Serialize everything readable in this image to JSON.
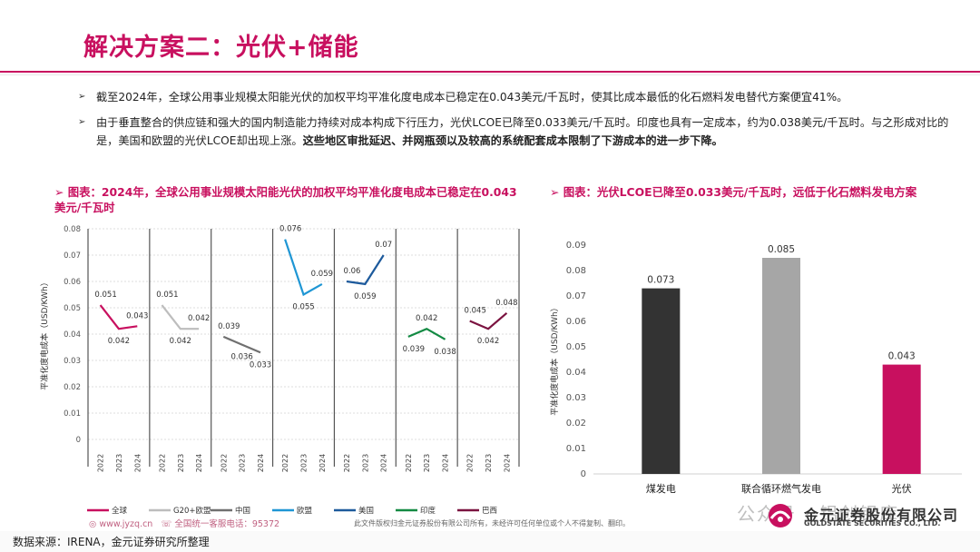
{
  "title": "解决方案二：光伏+储能",
  "bullets": [
    {
      "text": "截至2024年，全球公用事业规模太阳能光伏的加权平均平准化度电成本已稳定在0.043美元/千瓦时，使其比成本最低的化石燃料发电替代方案便宜41%。",
      "bold": ""
    },
    {
      "text": "由于垂直整合的供应链和强大的国内制造能力持续对成本构成下行压力，光伏LCOE已降至0.033美元/千瓦时。印度也具有一定成本，约为0.038美元/千瓦时。与之形成对比的是，美国和欧盟的光伏LCOE却出现上涨。",
      "bold": "这些地区审批延迟、并网瓶颈以及较高的系统配套成本限制了下游成本的进一步下降。"
    }
  ],
  "caption_left": "图表：2024年，全球公用事业规模太阳能光伏的加权平均平准化度电成本已稳定在0.043美元/千瓦时",
  "caption_right": "图表：光伏LCOE已降至0.033美元/千瓦时，远低于化石燃料发电方案",
  "chart_data": [
    {
      "type": "line",
      "ylabel": "平准化度电成本（USD/KWh）",
      "ylim": [
        0,
        0.08
      ],
      "yticks": [
        "0",
        "0.01",
        "0.02",
        "0.03",
        "0.04",
        "0.05",
        "0.06",
        "0.07",
        "0.08"
      ],
      "x": [
        "2022",
        "2023",
        "2024"
      ],
      "legend_position": "bottom",
      "series": [
        {
          "name": "全球",
          "color": "#c8105f",
          "values": [
            0.051,
            0.042,
            0.043
          ],
          "labels": [
            "0.051",
            "0.042",
            "0.043"
          ]
        },
        {
          "name": "G20+欧盟",
          "color": "#bdbdbd",
          "values": [
            0.051,
            0.042,
            0.042
          ],
          "labels": [
            "0.051",
            "0.042",
            "0.042"
          ]
        },
        {
          "name": "中国",
          "color": "#707070",
          "values": [
            0.039,
            0.036,
            0.033
          ],
          "labels": [
            "0.039",
            "0.036",
            "0.033"
          ]
        },
        {
          "name": "欧盟",
          "color": "#1f96d4",
          "values": [
            0.076,
            0.055,
            0.059
          ],
          "labels": [
            "0.076",
            "0.055",
            "0.059"
          ]
        },
        {
          "name": "美国",
          "color": "#1d5a9c",
          "values": [
            0.06,
            0.059,
            0.07
          ],
          "labels": [
            "0.06",
            "0.059",
            "0.07"
          ]
        },
        {
          "name": "印度",
          "color": "#138a43",
          "values": [
            0.039,
            0.042,
            0.038
          ],
          "labels": [
            "0.039",
            "0.042",
            "0.038"
          ]
        },
        {
          "name": "巴西",
          "color": "#7b1340",
          "values": [
            0.045,
            0.042,
            0.048
          ],
          "labels": [
            "0.045",
            "0.042",
            "0.048"
          ]
        }
      ]
    },
    {
      "type": "bar",
      "ylabel": "平准化度电成本（USD/KWh）",
      "ylim": [
        0,
        0.09
      ],
      "yticks": [
        "0",
        "0.01",
        "0.02",
        "0.03",
        "0.04",
        "0.05",
        "0.06",
        "0.07",
        "0.08",
        "0.09"
      ],
      "categories": [
        "煤发电",
        "联合循环燃气发电",
        "光伏"
      ],
      "values": [
        0.073,
        0.085,
        0.043
      ],
      "labels": [
        "0.073",
        "0.085",
        "0.043"
      ],
      "colors": [
        "#333333",
        "#a6a6a6",
        "#c8105f"
      ]
    }
  ],
  "footer": {
    "source": "数据来源：IRENA，金元证券研究所整理",
    "website": "www.jyzq.cn",
    "hotline": "全国统一客服电话：95372",
    "copyright": "此文件版权归金元证券股份有限公司所有，未经许可任何单位或个人不得复制、翻印。",
    "company": "金元证券股份有限公司",
    "company_en": "GOLDSTATE SECURITIES CO., LTD.",
    "watermark": "公众号 · 铝创铝库"
  }
}
